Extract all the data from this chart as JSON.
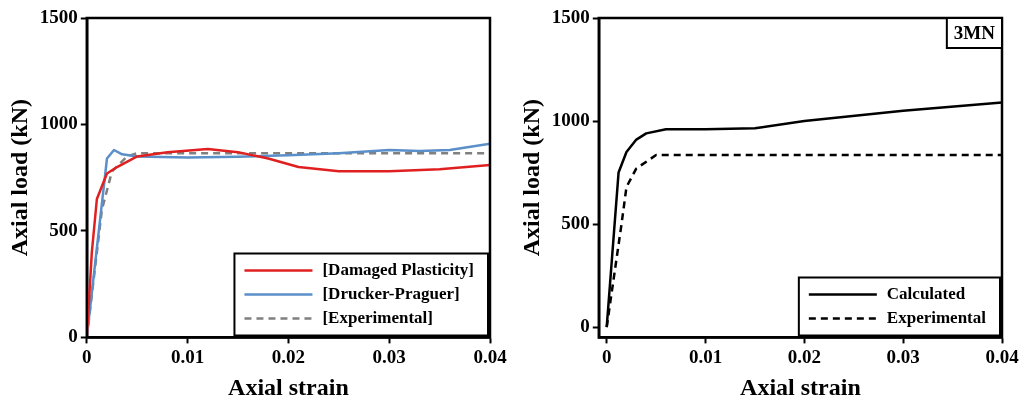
{
  "chart_data": [
    {
      "type": "line",
      "xlabel": "Axial strain",
      "ylabel": "Axial load (kN)",
      "xlim": [
        0,
        0.04
      ],
      "ylim": [
        0,
        1500
      ],
      "xticks": [
        0,
        0.01,
        0.02,
        0.03,
        0.04
      ],
      "yticks": [
        0,
        500,
        1000,
        1500
      ],
      "grid": false,
      "legend": "bottom right",
      "marker": "none",
      "series": [
        {
          "name": "[Damaged Plasticity]",
          "color": "#e02020",
          "line_style": "solid",
          "x": [
            0,
            0.0005,
            0.001,
            0.002,
            0.003,
            0.005,
            0.008,
            0.012,
            0.015,
            0.018,
            0.021,
            0.025,
            0.03,
            0.035,
            0.04
          ],
          "values": [
            0,
            400,
            650,
            770,
            800,
            850,
            870,
            885,
            870,
            840,
            800,
            780,
            780,
            790,
            810
          ]
        },
        {
          "name": "[Drucker-Praguer]",
          "color": "#5b8fc9",
          "line_style": "solid",
          "x": [
            0,
            0.002,
            0.0027,
            0.0035,
            0.005,
            0.01,
            0.015,
            0.02,
            0.025,
            0.03,
            0.033,
            0.036,
            0.04
          ],
          "values": [
            0,
            840,
            880,
            860,
            850,
            845,
            848,
            855,
            865,
            880,
            875,
            880,
            910
          ]
        },
        {
          "name": "[Experimental]",
          "color": "#808080",
          "line_style": "dashed",
          "x": [
            0,
            0.0015,
            0.0025,
            0.004,
            0.005,
            0.04
          ],
          "values": [
            0,
            600,
            780,
            850,
            865,
            865
          ]
        }
      ]
    },
    {
      "type": "line",
      "xlabel": "Axial strain",
      "ylabel": "Axial load (kN)",
      "xlim": [
        -0.0008,
        0.04
      ],
      "ylim": [
        -50,
        1500
      ],
      "xticks": [
        0,
        0.01,
        0.02,
        0.03,
        0.04
      ],
      "yticks": [
        0,
        500,
        1000,
        1500
      ],
      "grid": false,
      "legend": "bottom right",
      "marker": "none",
      "annotations": [
        "3MN"
      ],
      "series": [
        {
          "name": "Calculated",
          "color": "#000000",
          "line_style": "solid",
          "x": [
            0,
            0.0012,
            0.002,
            0.003,
            0.004,
            0.006,
            0.01,
            0.015,
            0.02,
            0.03,
            0.04
          ],
          "values": [
            0,
            750,
            850,
            910,
            940,
            960,
            960,
            965,
            1000,
            1050,
            1090
          ]
        },
        {
          "name": "Experimental",
          "color": "#000000",
          "line_style": "dashed",
          "x": [
            0,
            0.0015,
            0.002,
            0.003,
            0.005,
            0.04
          ],
          "values": [
            0,
            500,
            680,
            770,
            835,
            835
          ]
        }
      ]
    }
  ]
}
